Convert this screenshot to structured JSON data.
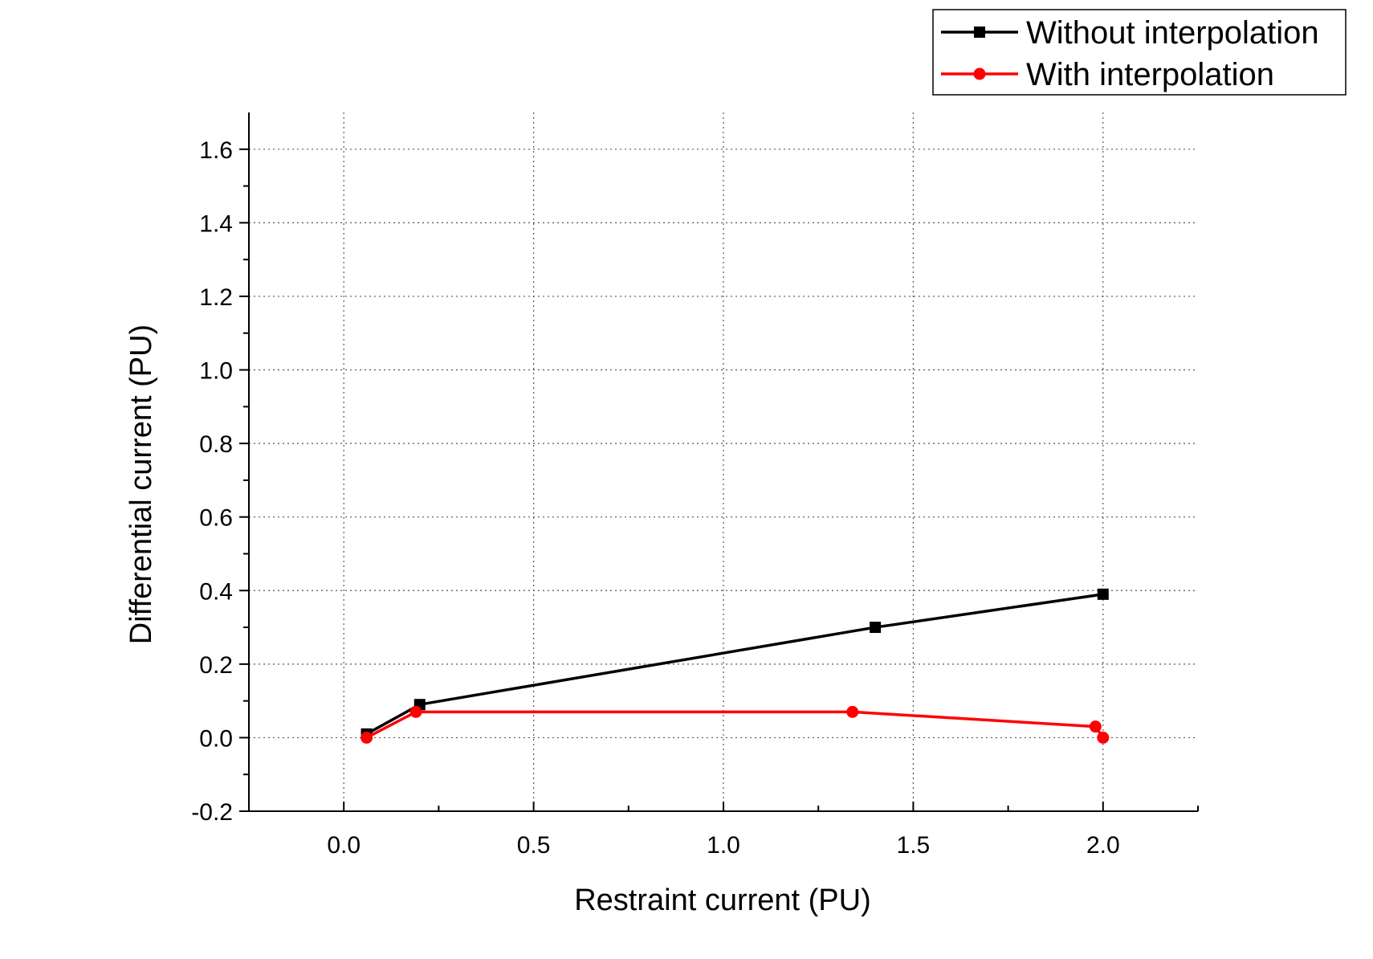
{
  "chart_data": {
    "type": "line",
    "xlabel": "Restraint current (PU)",
    "ylabel": "Differential current (PU)",
    "xlim": [
      -0.25,
      2.25
    ],
    "ylim": [
      -0.2,
      1.7
    ],
    "x_ticks": [
      "0.0",
      "0.5",
      "1.0",
      "1.5",
      "2.0"
    ],
    "y_ticks": [
      "-0.2",
      "0.0",
      "0.2",
      "0.4",
      "0.6",
      "0.8",
      "1.0",
      "1.2",
      "1.4",
      "1.6"
    ],
    "grid": true,
    "legend_position": "top-right",
    "series": [
      {
        "name": "Without interpolation",
        "color": "#000000",
        "marker": "square",
        "x": [
          0.06,
          0.2,
          1.4,
          2.0
        ],
        "y": [
          0.01,
          0.09,
          0.3,
          0.39
        ]
      },
      {
        "name": "With interpolation",
        "color": "#ff0000",
        "marker": "circle",
        "x": [
          0.06,
          0.19,
          1.34,
          1.98,
          2.0
        ],
        "y": [
          0.0,
          0.07,
          0.07,
          0.03,
          0.0
        ]
      }
    ]
  }
}
